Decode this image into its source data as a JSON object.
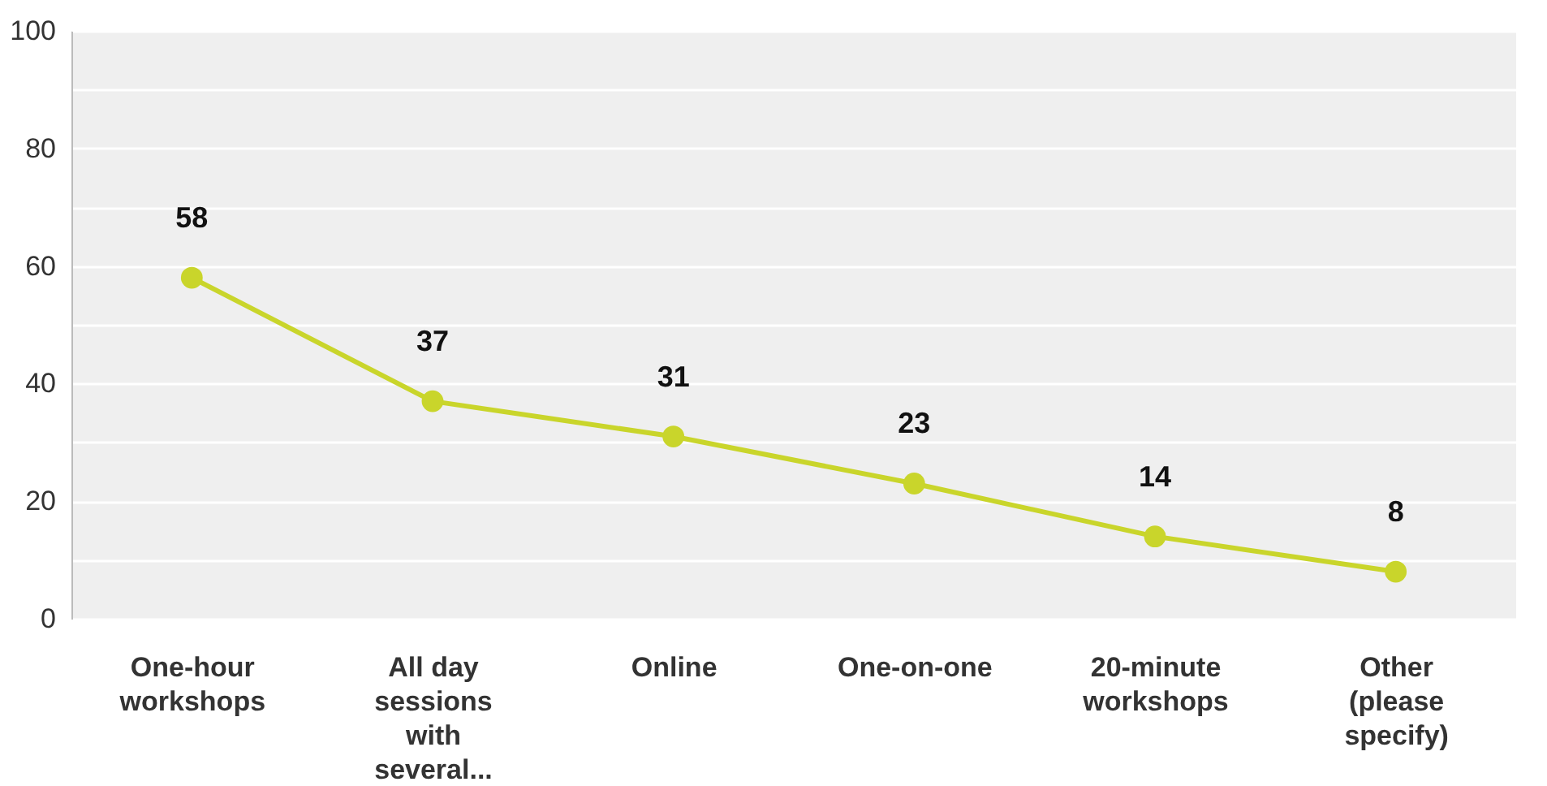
{
  "chart_data": {
    "type": "line",
    "categories": [
      "One-hour workshops",
      "All day sessions with several...",
      "Online",
      "One-on-one",
      "20-minute workshops",
      "Other (please specify)"
    ],
    "series": [
      {
        "color": "#c9d52b",
        "values": [
          58,
          37,
          31,
          23,
          14,
          8
        ]
      }
    ],
    "ylim": [
      0,
      100
    ],
    "yticks": [
      0,
      {
        "value": 10,
        "label": null
      },
      20,
      {
        "value": 30,
        "label": null
      },
      40,
      {
        "value": 50,
        "label": null
      },
      60,
      {
        "value": 70,
        "label": null
      },
      80,
      {
        "value": 90,
        "label": null
      },
      100
    ],
    "grid": true,
    "marker": "circle",
    "data_labels": true
  }
}
